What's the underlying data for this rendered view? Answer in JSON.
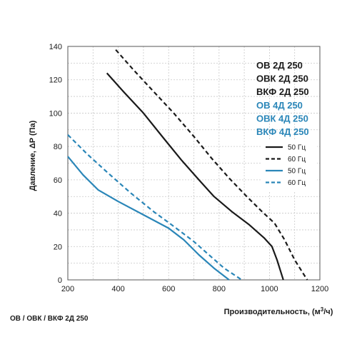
{
  "chart_data": {
    "type": "line",
    "xlabel_text": "Производительность, (м",
    "xlabel_sup": "3",
    "xlabel_tail": "/ч)",
    "ylabel": "Давление, ΔP (Па)",
    "xlim": [
      200,
      1200
    ],
    "ylim": [
      0,
      140
    ],
    "x_ticks": [
      200,
      400,
      600,
      800,
      1000,
      1200
    ],
    "y_ticks": [
      0,
      20,
      40,
      60,
      80,
      100,
      120,
      140
    ],
    "grid": true,
    "legend_position": "right",
    "model_labels": [
      {
        "text": "ОВ 2Д 250",
        "color": "#1a1a1a"
      },
      {
        "text": "ОВК 2Д 250",
        "color": "#1a1a1a"
      },
      {
        "text": "ВКФ 2Д 250",
        "color": "#1a1a1a"
      },
      {
        "text": "ОВ 4Д 250",
        "color": "#2a86b8"
      },
      {
        "text": "ОВК 4Д 250",
        "color": "#2a86b8"
      },
      {
        "text": "ВКФ 4Д 250",
        "color": "#2a86b8"
      }
    ],
    "series": [
      {
        "name": "50 Гц",
        "color": "#1a1a1a",
        "dash": false,
        "points": [
          [
            355,
            124
          ],
          [
            420,
            113
          ],
          [
            500,
            100
          ],
          [
            580,
            85
          ],
          [
            650,
            72
          ],
          [
            720,
            60
          ],
          [
            780,
            50
          ],
          [
            850,
            41
          ],
          [
            920,
            33
          ],
          [
            980,
            25
          ],
          [
            1010,
            20
          ],
          [
            1030,
            12
          ],
          [
            1055,
            0
          ]
        ]
      },
      {
        "name": "60 Гц",
        "color": "#1a1a1a",
        "dash": true,
        "points": [
          [
            390,
            138
          ],
          [
            460,
            126
          ],
          [
            540,
            113
          ],
          [
            620,
            100
          ],
          [
            700,
            86
          ],
          [
            770,
            73
          ],
          [
            840,
            61
          ],
          [
            910,
            50
          ],
          [
            970,
            41
          ],
          [
            1020,
            34
          ],
          [
            1060,
            24
          ],
          [
            1100,
            12
          ],
          [
            1150,
            0
          ]
        ]
      },
      {
        "name": "50 Гц",
        "color": "#2a86b8",
        "dash": false,
        "points": [
          [
            200,
            74
          ],
          [
            260,
            63
          ],
          [
            320,
            54
          ],
          [
            400,
            47
          ],
          [
            500,
            39
          ],
          [
            600,
            31
          ],
          [
            660,
            24
          ],
          [
            720,
            15
          ],
          [
            780,
            7
          ],
          [
            840,
            0
          ]
        ]
      },
      {
        "name": "60 Гц",
        "color": "#2a86b8",
        "dash": true,
        "points": [
          [
            200,
            87
          ],
          [
            280,
            75
          ],
          [
            360,
            64
          ],
          [
            450,
            52
          ],
          [
            540,
            41
          ],
          [
            630,
            31
          ],
          [
            700,
            23
          ],
          [
            760,
            15
          ],
          [
            820,
            7
          ],
          [
            890,
            0
          ]
        ]
      }
    ]
  },
  "footer": {
    "caption": "ОВ / ОВК / ВКФ 2Д 250"
  }
}
